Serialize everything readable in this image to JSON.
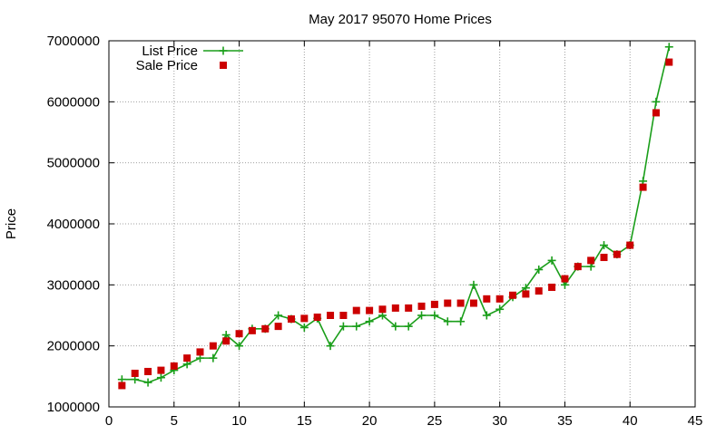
{
  "chart_data": {
    "type": "line",
    "title": "May 2017 95070 Home Prices",
    "xlabel": "",
    "ylabel": "Price",
    "xlim": [
      0,
      45
    ],
    "ylim": [
      1000000,
      7000000
    ],
    "xticks": [
      0,
      5,
      10,
      15,
      20,
      25,
      30,
      35,
      40,
      45
    ],
    "yticks": [
      1000000,
      2000000,
      3000000,
      4000000,
      5000000,
      6000000,
      7000000
    ],
    "grid": true,
    "legend_position": "top-left",
    "series": [
      {
        "name": "List Price",
        "style": "line-plus",
        "color": "#1a9e1a",
        "x": [
          1,
          2,
          3,
          4,
          5,
          6,
          7,
          8,
          9,
          10,
          11,
          12,
          13,
          14,
          15,
          16,
          17,
          18,
          19,
          20,
          21,
          22,
          23,
          24,
          25,
          26,
          27,
          28,
          29,
          30,
          31,
          32,
          33,
          34,
          35,
          36,
          37,
          38,
          39,
          40,
          41,
          42,
          43
        ],
        "values": [
          1450000,
          1450000,
          1400000,
          1480000,
          1600000,
          1700000,
          1800000,
          1800000,
          2180000,
          2000000,
          2280000,
          2280000,
          2500000,
          2440000,
          2300000,
          2450000,
          2000000,
          2320000,
          2320000,
          2400000,
          2500000,
          2320000,
          2320000,
          2500000,
          2500000,
          2400000,
          2400000,
          3000000,
          2500000,
          2600000,
          2800000,
          2950000,
          3250000,
          3400000,
          3000000,
          3300000,
          3300000,
          3650000,
          3500000,
          3650000,
          4700000,
          6000000,
          6900000
        ]
      },
      {
        "name": "Sale Price",
        "style": "square",
        "color": "#cc0000",
        "x": [
          1,
          2,
          3,
          4,
          5,
          6,
          7,
          8,
          9,
          10,
          11,
          12,
          13,
          14,
          15,
          16,
          17,
          18,
          19,
          20,
          21,
          22,
          23,
          24,
          25,
          26,
          27,
          28,
          29,
          30,
          31,
          32,
          33,
          34,
          35,
          36,
          37,
          38,
          39,
          40,
          41,
          42,
          43
        ],
        "values": [
          1350000,
          1550000,
          1580000,
          1600000,
          1670000,
          1800000,
          1900000,
          2000000,
          2080000,
          2200000,
          2250000,
          2280000,
          2320000,
          2440000,
          2450000,
          2470000,
          2500000,
          2500000,
          2580000,
          2580000,
          2600000,
          2620000,
          2620000,
          2650000,
          2680000,
          2700000,
          2700000,
          2700000,
          2770000,
          2770000,
          2830000,
          2850000,
          2900000,
          2960000,
          3100000,
          3300000,
          3400000,
          3450000,
          3500000,
          3650000,
          4600000,
          5820000,
          6650000
        ]
      }
    ]
  }
}
